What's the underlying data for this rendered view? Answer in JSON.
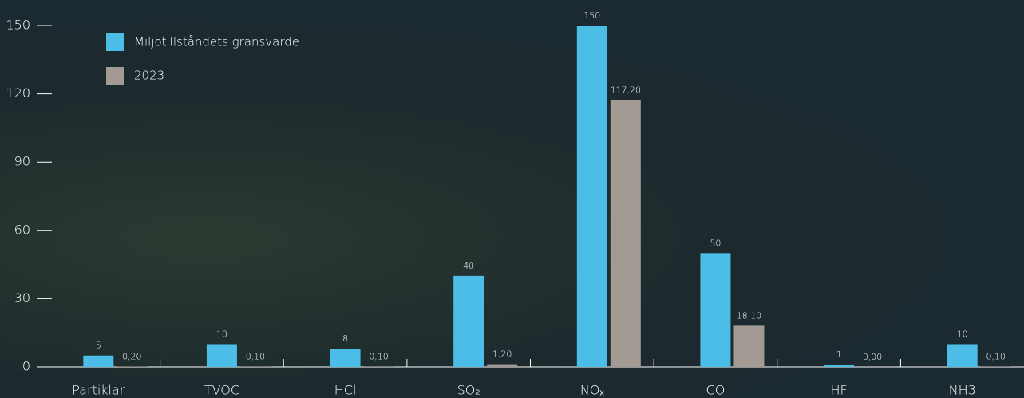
{
  "chart_data": {
    "type": "bar",
    "categories": [
      "Partiklar",
      "TVOC",
      "HCl",
      "SO₂",
      "NOₓ",
      "CO",
      "HF",
      "NH3"
    ],
    "series": [
      {
        "name": "Miljötillståndets gränsvärde",
        "color": "#4bbde6",
        "values": [
          5,
          10,
          8,
          40,
          150,
          50,
          1,
          10
        ]
      },
      {
        "name": "2023",
        "color": "#a39a94",
        "values": [
          0.2,
          0.1,
          0.1,
          1.2,
          117.2,
          18.1,
          0,
          0.1
        ],
        "value_labels": [
          "0,20",
          "0,10",
          "0,10",
          "1,20",
          "117,20",
          "18,10",
          "0,00",
          "0,10"
        ]
      }
    ],
    "ylim": [
      0,
      150
    ],
    "yticks": [
      0,
      30,
      60,
      90,
      120,
      150
    ]
  }
}
